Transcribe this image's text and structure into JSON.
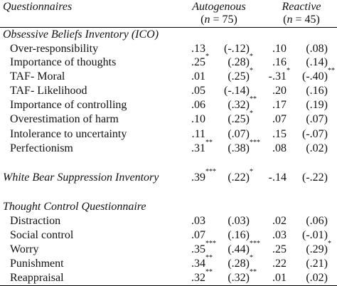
{
  "header": {
    "label": "Questionnaires",
    "groups": [
      {
        "name": "Autogenous",
        "sample": {
          "pre": "(",
          "var": "n",
          "post": " = 75)"
        }
      },
      {
        "name": "Reactive",
        "sample": {
          "pre": "(",
          "var": "n",
          "post": " = 45)"
        }
      }
    ]
  },
  "sections": [
    {
      "title": "Obsessive Beliefs Inventory (ICO)",
      "rows": [
        {
          "label": "Over-responsibility",
          "cells": [
            {
              "text": ".13"
            },
            {
              "text": "(-.12)"
            },
            {
              "text": ".10"
            },
            {
              "text": "(.08)"
            }
          ]
        },
        {
          "label": "Importance of thoughts",
          "cells": [
            {
              "text": ".25",
              "sup": "*"
            },
            {
              "text": "(.28)",
              "sup": "*"
            },
            {
              "text": ".16"
            },
            {
              "text": "(.14)"
            }
          ]
        },
        {
          "label": "TAF- Moral",
          "cells": [
            {
              "text": ".01"
            },
            {
              "text": "(.25)",
              "sup": "*"
            },
            {
              "text": "-.31",
              "sup": "*"
            },
            {
              "text": "(-.40)",
              "sup": "**"
            }
          ]
        },
        {
          "label": "TAF- Likelihood",
          "cells": [
            {
              "text": ".05"
            },
            {
              "text": "(-.14)"
            },
            {
              "text": ".20"
            },
            {
              "text": "(.16)"
            }
          ]
        },
        {
          "label": "Importance of controlling",
          "cells": [
            {
              "text": ".06"
            },
            {
              "text": "(.32)",
              "sup": "**"
            },
            {
              "text": ".17"
            },
            {
              "text": "(.19)"
            }
          ]
        },
        {
          "label": "Overestimation of harm",
          "cells": [
            {
              "text": ".10"
            },
            {
              "text": "(.25)",
              "sup": "*"
            },
            {
              "text": ".07"
            },
            {
              "text": "(.07)"
            }
          ]
        },
        {
          "label": "Intolerance to uncertainty",
          "cells": [
            {
              "text": ".11"
            },
            {
              "text": "(.07)"
            },
            {
              "text": ".15"
            },
            {
              "text": "(-.07)"
            }
          ]
        },
        {
          "label": "Perfectionism",
          "cells": [
            {
              "text": ".31",
              "sup": "**"
            },
            {
              "text": "(.38)",
              "sup": "***"
            },
            {
              "text": ".08"
            },
            {
              "text": "(.02)"
            }
          ]
        }
      ]
    },
    {
      "title": "White Bear Suppression Inventory",
      "cells": [
        {
          "text": ".39",
          "sup": "***"
        },
        {
          "text": "(.22)",
          "sup": "*"
        },
        {
          "text": "-.14"
        },
        {
          "text": "(-.22)"
        }
      ]
    },
    {
      "title": "Thought Control Questionnaire",
      "rows": [
        {
          "label": "Distraction",
          "cells": [
            {
              "text": ".03"
            },
            {
              "text": "(.03)"
            },
            {
              "text": ".02"
            },
            {
              "text": "(.06)"
            }
          ]
        },
        {
          "label": "Social control",
          "cells": [
            {
              "text": ".07"
            },
            {
              "text": "(.16)"
            },
            {
              "text": ".03"
            },
            {
              "text": "(-.01)"
            }
          ]
        },
        {
          "label": "Worry",
          "cells": [
            {
              "text": ".35",
              "sup": "***"
            },
            {
              "text": "(.44)",
              "sup": "***"
            },
            {
              "text": ".25"
            },
            {
              "text": "(.29)",
              "sup": "*"
            }
          ]
        },
        {
          "label": "Punishment",
          "cells": [
            {
              "text": ".34",
              "sup": "**"
            },
            {
              "text": "(.28)",
              "sup": "*"
            },
            {
              "text": ".22"
            },
            {
              "text": "(.21)"
            }
          ]
        },
        {
          "label": "Reappraisal",
          "cells": [
            {
              "text": ".32",
              "sup": "**"
            },
            {
              "text": "(.32)",
              "sup": "**"
            },
            {
              "text": ".01"
            },
            {
              "text": "(.02)"
            }
          ]
        }
      ]
    }
  ]
}
